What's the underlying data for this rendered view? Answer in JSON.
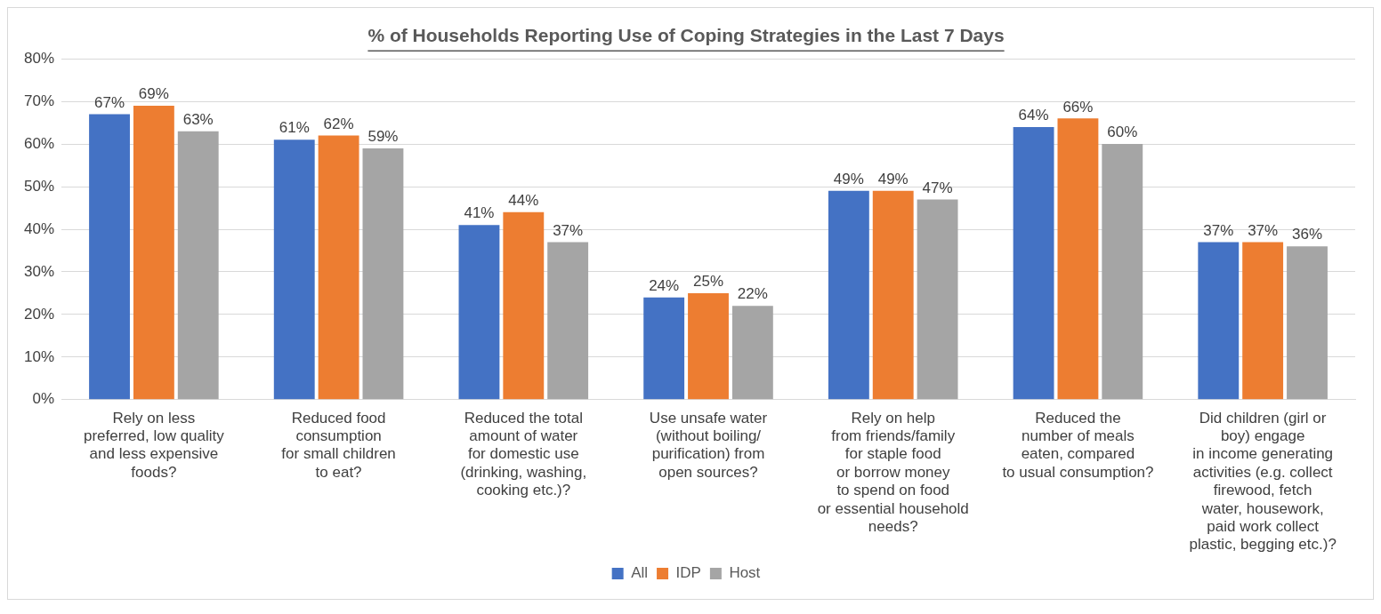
{
  "chart_data": {
    "type": "bar",
    "title": "% of Households Reporting Use of Coping Strategies in the Last 7 Days",
    "categories": [
      "Rely on less\npreferred, low quality\nand less expensive\nfoods?",
      "Reduced food\nconsumption\nfor small children\nto eat?",
      "Reduced the total\namount of water\nfor domestic use\n(drinking, washing,\ncooking etc.)?",
      "Use unsafe water\n(without boiling/\npurification) from\nopen sources?",
      "Rely on help\nfrom friends/family\nfor staple food\nor borrow money\nto spend on food\nor essential household\nneeds?",
      "Reduced the\nnumber of meals\neaten, compared\nto usual consumption?",
      "Did children (girl or\nboy) engage\nin income generating\nactivities (e.g. collect\nfirewood, fetch\nwater, housework,\npaid work collect\nplastic, begging etc.)?"
    ],
    "series": [
      {
        "name": "All",
        "color": "#4472c4",
        "values": [
          67,
          61,
          41,
          24,
          49,
          64,
          37
        ],
        "value_labels": [
          "67%",
          "61%",
          "41%",
          "24%",
          "49%",
          "64%",
          "37%"
        ]
      },
      {
        "name": "IDP",
        "color": "#ed7d31",
        "values": [
          69,
          62,
          44,
          25,
          49,
          66,
          37
        ],
        "value_labels": [
          "69%",
          "62%",
          "44%",
          "25%",
          "49%",
          "66%",
          "37%"
        ]
      },
      {
        "name": "Host",
        "color": "#a5a5a5",
        "values": [
          63,
          59,
          37,
          22,
          47,
          60,
          36
        ],
        "value_labels": [
          "63%",
          "59%",
          "37%",
          "22%",
          "47%",
          "60%",
          "36%"
        ]
      }
    ],
    "ylim": [
      0,
      80
    ],
    "yticks": [
      {
        "value": 0,
        "label": "0%"
      },
      {
        "value": 10,
        "label": "10%"
      },
      {
        "value": 20,
        "label": "20%"
      },
      {
        "value": 30,
        "label": "30%"
      },
      {
        "value": 40,
        "label": "40%"
      },
      {
        "value": 50,
        "label": "50%"
      },
      {
        "value": 60,
        "label": "60%"
      },
      {
        "value": 70,
        "label": "70%"
      },
      {
        "value": 80,
        "label": "80%"
      }
    ],
    "grid": "y",
    "legend": "bottom"
  }
}
